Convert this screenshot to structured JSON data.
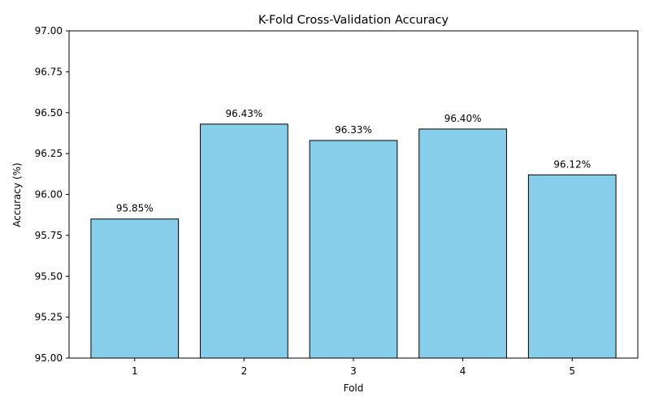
{
  "chart_data": {
    "type": "bar",
    "title": "K-Fold Cross-Validation Accuracy",
    "xlabel": "Fold",
    "ylabel": "Accuracy (%)",
    "categories": [
      "1",
      "2",
      "3",
      "4",
      "5"
    ],
    "values": [
      95.85,
      96.43,
      96.33,
      96.4,
      96.12
    ],
    "data_labels": [
      "95.85%",
      "96.43%",
      "96.33%",
      "96.40%",
      "96.12%"
    ],
    "ylim": [
      95.0,
      97.0
    ],
    "yticks": [
      "95.00",
      "95.25",
      "95.50",
      "95.75",
      "96.00",
      "96.25",
      "96.50",
      "96.75",
      "97.00"
    ],
    "grid": false,
    "bar_color": "#87CEEB",
    "bar_edge_color": "#000000"
  }
}
